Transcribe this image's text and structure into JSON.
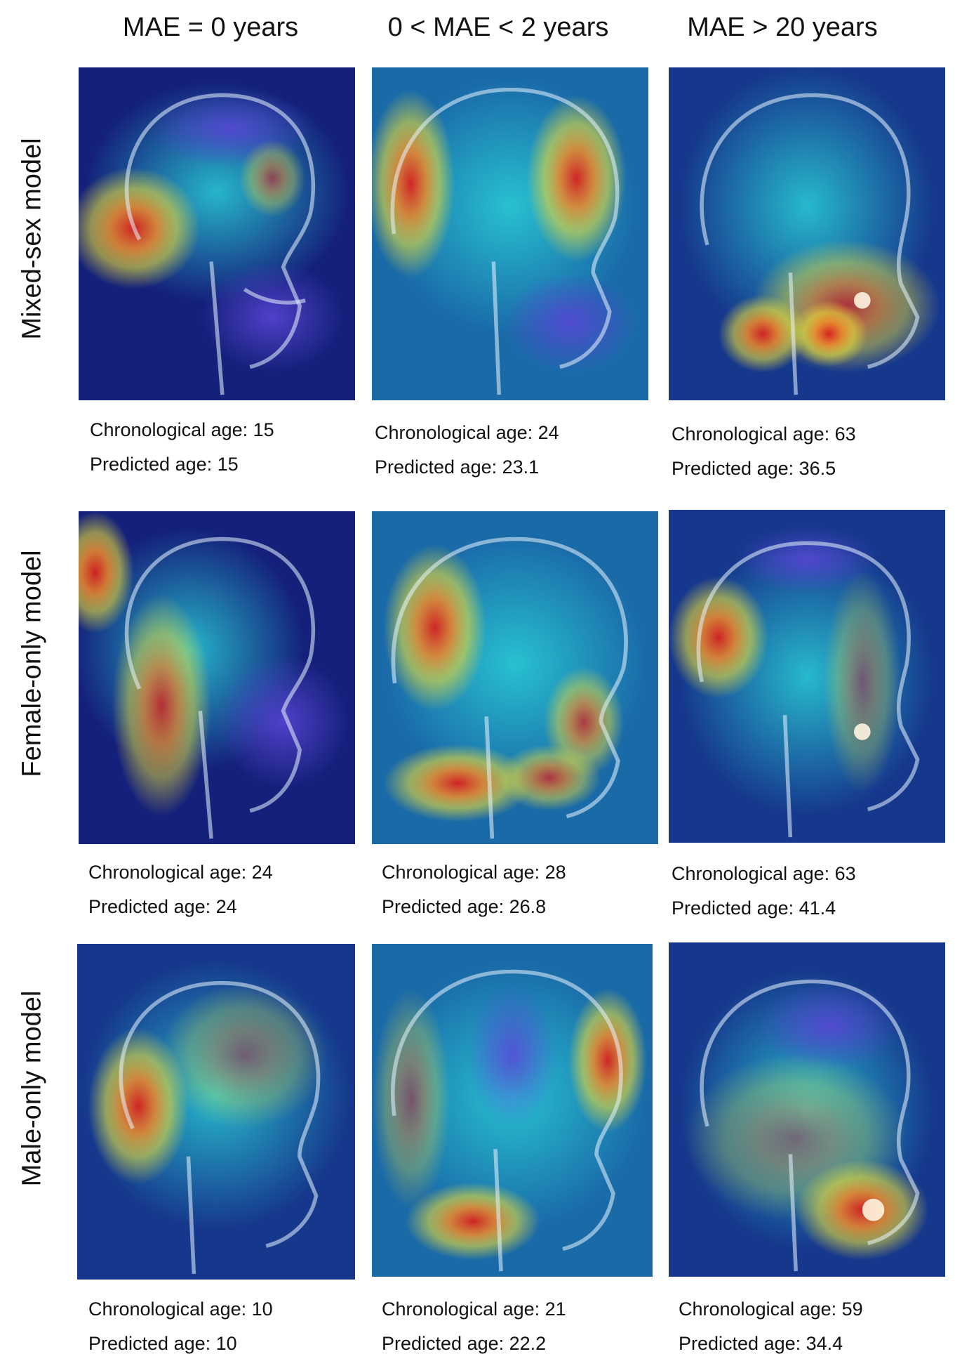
{
  "columns": [
    "MAE = 0 years",
    "0 < MAE < 2 years",
    "MAE > 20 years"
  ],
  "rows": [
    "Mixed-sex model",
    "Female-only model",
    "Male-only model"
  ],
  "panels": [
    [
      {
        "chronological": "Chronological age: 15",
        "predicted": "Predicted age: 15"
      },
      {
        "chronological": "Chronological age: 24",
        "predicted": "Predicted age: 23.1"
      },
      {
        "chronological": "Chronological age: 63",
        "predicted": "Predicted age: 36.5"
      }
    ],
    [
      {
        "chronological": "Chronological age: 24",
        "predicted": "Predicted age: 24"
      },
      {
        "chronological": "Chronological age: 28",
        "predicted": "Predicted age: 26.8"
      },
      {
        "chronological": "Chronological age: 63",
        "predicted": "Predicted age: 41.4"
      }
    ],
    [
      {
        "chronological": "Chronological age: 10",
        "predicted": "Predicted age: 10"
      },
      {
        "chronological": "Chronological age: 21",
        "predicted": "Predicted age: 22.2"
      },
      {
        "chronological": "Chronological age: 59",
        "predicted": "Predicted age: 34.4"
      }
    ]
  ],
  "colors": {
    "background": "#ffffff",
    "heat_low": "#10145a",
    "heat_mid": "#2ad0d8",
    "heat_warm": "#e6dc3a",
    "heat_high": "#d8201e",
    "skull": "#e8f4ff"
  }
}
